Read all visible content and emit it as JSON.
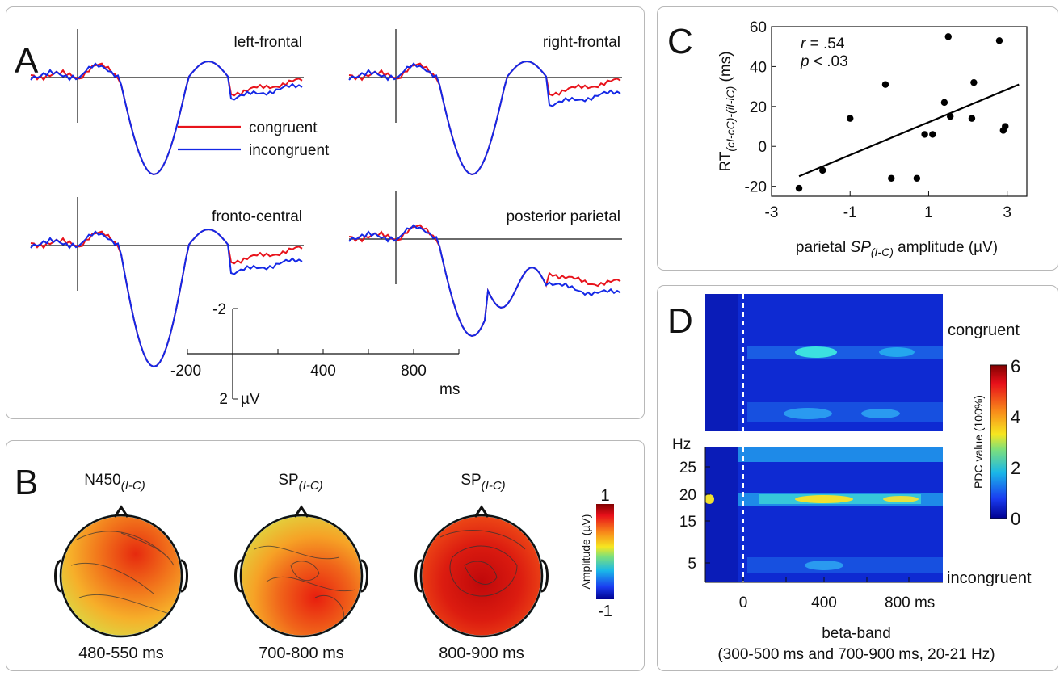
{
  "panel_letters": {
    "a": "A",
    "b": "B",
    "c": "C",
    "d": "D"
  },
  "colors": {
    "congruent": "#e8141c",
    "incongruent": "#1428e6",
    "axis": "#111111",
    "frame": "#b8b8b8"
  },
  "chart_data": [
    {
      "id": "A",
      "type": "line",
      "legend": [
        "congruent",
        "incongruent"
      ],
      "legend_position": "center",
      "subplots": [
        {
          "title": "left-frontal"
        },
        {
          "title": "right-frontal"
        },
        {
          "title": "fronto-central"
        },
        {
          "title": "posterior parietal"
        }
      ],
      "x_unit": "ms",
      "y_unit": "µV",
      "x_ticks": [
        "-200",
        "400",
        "800"
      ],
      "y_ticks": [
        "-2",
        "2"
      ],
      "xlim": [
        -200,
        900
      ],
      "ylim_inverted": [
        2,
        -2
      ]
    },
    {
      "id": "B",
      "type": "heatmap",
      "maps": [
        {
          "title_main": "N450",
          "title_sub": "(I-C)",
          "time": "480-550 ms"
        },
        {
          "title_main": "SP",
          "title_sub": "(I-C)",
          "time": "700-800 ms"
        },
        {
          "title_main": "SP",
          "title_sub": "(I-C)",
          "time": "800-900 ms"
        }
      ],
      "colorbar": {
        "label": "Amplitude (µV)",
        "max": "1",
        "min": "-1"
      }
    },
    {
      "id": "C",
      "type": "scatter",
      "stat_r_label": "r",
      "stat_r_value": " = .54",
      "stat_p_label": "p",
      "stat_p_value": " < .03",
      "ylabel_main": "RT",
      "ylabel_sub": "(cI-cC)-(iI-iC)",
      "ylabel_unit": " (ms)",
      "xlabel_pre": "parietal ",
      "xlabel_mid": "SP",
      "xlabel_sub": "(I-C)",
      "xlabel_post": " amplitude (µV)",
      "x_ticks": [
        "-3",
        "-1",
        "1",
        "3"
      ],
      "y_ticks": [
        "-20",
        "0",
        "20",
        "40",
        "60"
      ],
      "xlim": [
        -3,
        3.5
      ],
      "ylim": [
        -25,
        60
      ],
      "points": [
        {
          "x": -2.3,
          "y": -21
        },
        {
          "x": -1.7,
          "y": -12
        },
        {
          "x": -1.0,
          "y": 14
        },
        {
          "x": -0.1,
          "y": 31
        },
        {
          "x": 0.05,
          "y": -16
        },
        {
          "x": 0.7,
          "y": -16
        },
        {
          "x": 0.9,
          "y": 6
        },
        {
          "x": 1.1,
          "y": 6
        },
        {
          "x": 1.4,
          "y": 22
        },
        {
          "x": 1.5,
          "y": 55
        },
        {
          "x": 1.55,
          "y": 15
        },
        {
          "x": 2.1,
          "y": 14
        },
        {
          "x": 2.15,
          "y": 32
        },
        {
          "x": 2.8,
          "y": 53
        },
        {
          "x": 2.9,
          "y": 8
        },
        {
          "x": 2.95,
          "y": 10
        }
      ],
      "fit": {
        "x1": -2.3,
        "y1": -15,
        "x2": 3.3,
        "y2": 31
      }
    },
    {
      "id": "D",
      "type": "heatmap",
      "labels": {
        "top": "congruent",
        "bottom": "incongruent"
      },
      "ylabel": "Hz",
      "y_ticks": [
        "25",
        "20",
        "15",
        "5"
      ],
      "x_ticks": [
        "0",
        "400",
        "800 ms"
      ],
      "xlabel_line1": "beta-band",
      "xlabel_line2": "(300-500 ms and 700-900 ms, 20-21 Hz)",
      "colorbar": {
        "label": "PDC value (100%)",
        "ticks": [
          "6",
          "4",
          "2",
          "0"
        ]
      }
    }
  ]
}
